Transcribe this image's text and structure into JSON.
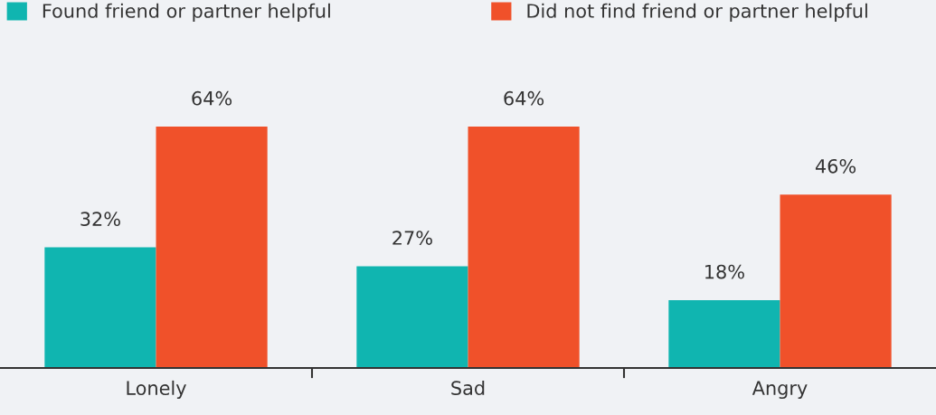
{
  "chart_data": {
    "type": "bar",
    "categories": [
      "Lonely",
      "Sad",
      "Angry"
    ],
    "series": [
      {
        "name": "Found friend or partner helpful",
        "color": "#10b5b0",
        "values": [
          32,
          27,
          18
        ],
        "value_labels": [
          "32%",
          "27%",
          "18%"
        ]
      },
      {
        "name": "Did not find friend or partner helpful",
        "color": "#f0512a",
        "values": [
          64,
          64,
          46
        ],
        "value_labels": [
          "64%",
          "64%",
          "46%"
        ]
      }
    ],
    "legend": "top",
    "grid": false
  }
}
